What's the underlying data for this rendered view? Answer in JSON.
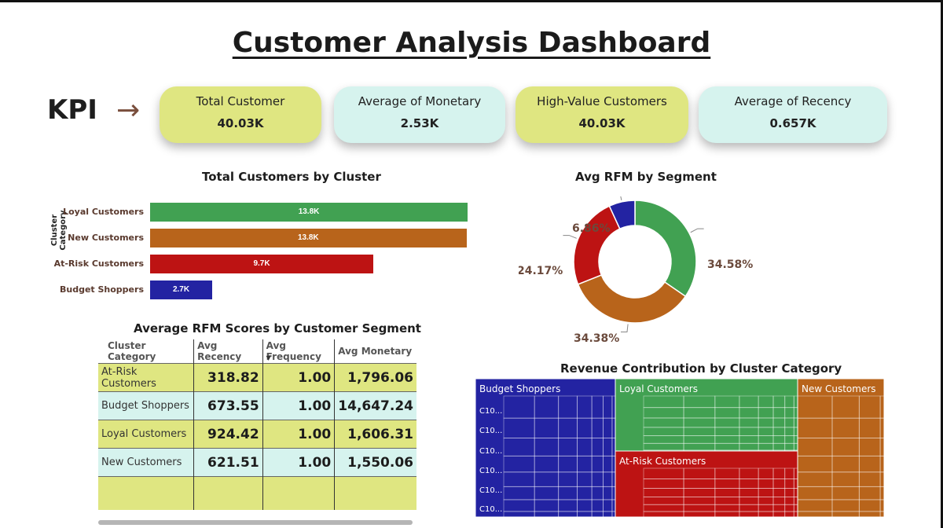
{
  "title": "Customer Analysis Dashboard",
  "kpi": {
    "label": "KPI",
    "arrow": "→",
    "cards": [
      {
        "label": "Total Customer",
        "value": "40.03K",
        "color": "#dfe681"
      },
      {
        "label": "Average of Monetary",
        "value": "2.53K",
        "color": "#d6f3ee"
      },
      {
        "label": "High-Value Customers",
        "value": "40.03K",
        "color": "#dfe681"
      },
      {
        "label": "Average of Recency",
        "value": "0.657K",
        "color": "#d6f3ee"
      }
    ]
  },
  "bar_chart": {
    "title": "Total Customers by Cluster",
    "y_axis_label": "Cluster Category"
  },
  "donut_chart": {
    "title": "Avg RFM by Segment"
  },
  "table": {
    "title": "Average RFM Scores by Customer Segment",
    "columns": [
      "Cluster Category",
      "Avg Recency",
      "Avg Frequency",
      "Avg Monetary"
    ],
    "rows": [
      {
        "category": "At-Risk Customers",
        "recency": "318.82",
        "frequency": "1.00",
        "monetary": "1,796.06"
      },
      {
        "category": "Budget Shoppers",
        "recency": "673.55",
        "frequency": "1.00",
        "monetary": "14,647.24"
      },
      {
        "category": "Loyal Customers",
        "recency": "924.42",
        "frequency": "1.00",
        "monetary": "1,606.31"
      },
      {
        "category": "New Customers",
        "recency": "621.51",
        "frequency": "1.00",
        "monetary": "1,550.06"
      }
    ]
  },
  "treemap": {
    "title": "Revenue Contribution by Cluster Category",
    "labels": [
      "Budget Shoppers",
      "Loyal Customers",
      "New Customers",
      "At-Risk Customers"
    ],
    "small_label": "C10..."
  },
  "chart_data": [
    {
      "type": "bar",
      "title": "Total Customers by Cluster",
      "ylabel": "Cluster Category",
      "categories": [
        "Loyal Customers",
        "New Customers",
        "At-Risk Customers",
        "Budget Shoppers"
      ],
      "values": [
        13800,
        13750,
        9700,
        2700
      ],
      "value_labels": [
        "13.8K",
        "13.8K",
        "9.7K",
        "2.7K"
      ],
      "colors": [
        "#41a152",
        "#b8641b",
        "#bd1313",
        "#2323a2"
      ],
      "xlim": [
        0,
        13900
      ]
    },
    {
      "type": "pie",
      "title": "Avg RFM by Segment",
      "slices": [
        {
          "value": 34.58,
          "label": "34.58%",
          "color": "#41a152"
        },
        {
          "value": 34.38,
          "label": "34.38%",
          "color": "#b8641b"
        },
        {
          "value": 24.17,
          "label": "24.17%",
          "color": "#bd1313"
        },
        {
          "value": 6.86,
          "label": "6.86%",
          "color": "#2323a2"
        }
      ]
    }
  ]
}
